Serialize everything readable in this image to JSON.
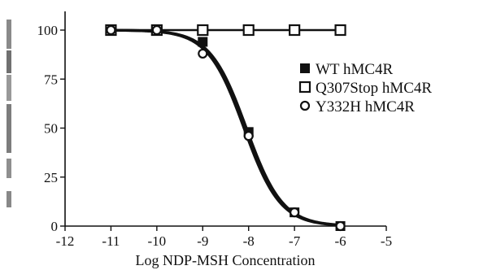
{
  "chart_data": {
    "type": "scatter",
    "title": "",
    "xlabel": "Log NDP-MSH Concentration",
    "ylabel": "",
    "xlim": [
      -12,
      -5
    ],
    "ylim": [
      0,
      110
    ],
    "x_ticks": [
      -12,
      -11,
      -10,
      -9,
      -8,
      -7,
      -6,
      -5
    ],
    "y_ticks": [
      0,
      25,
      50,
      75,
      100
    ],
    "x_tick_labels": [
      "-12",
      "-11",
      "-10",
      "-9",
      "-8",
      "-7",
      "-6",
      "-5"
    ],
    "y_tick_labels": [
      "0",
      "25",
      "50",
      "75",
      "100"
    ],
    "grid": false,
    "legend_position": "right",
    "series": [
      {
        "name": "WT hMC4R",
        "marker": "filled-square",
        "color": "#111111",
        "x": [
          -11,
          -10,
          -9,
          -8,
          -7,
          -6
        ],
        "y": [
          100,
          100,
          94,
          48,
          7,
          0
        ]
      },
      {
        "name": "Q307Stop hMC4R",
        "marker": "open-square",
        "color": "#111111",
        "x": [
          -11,
          -10,
          -9,
          -8,
          -7,
          -6
        ],
        "y": [
          100,
          100,
          100,
          100,
          100,
          100
        ]
      },
      {
        "name": "Y332H hMC4R",
        "marker": "open-circle",
        "color": "#111111",
        "x": [
          -11,
          -10,
          -9,
          -8,
          -7,
          -6
        ],
        "y": [
          100,
          100,
          88,
          46,
          7,
          0
        ]
      }
    ],
    "fit_curves": [
      {
        "series": "WT hMC4R",
        "top": 100,
        "bottom": 0,
        "log_ec50": -8.05,
        "hill": 1.1
      },
      {
        "series": "Y332H hMC4R",
        "top": 100,
        "bottom": 0,
        "log_ec50": -8.1,
        "hill": 1.1
      },
      {
        "series": "Q307Stop hMC4R",
        "top": 100,
        "bottom": 100,
        "log_ec50": -8.0,
        "hill": 1.0
      }
    ]
  }
}
